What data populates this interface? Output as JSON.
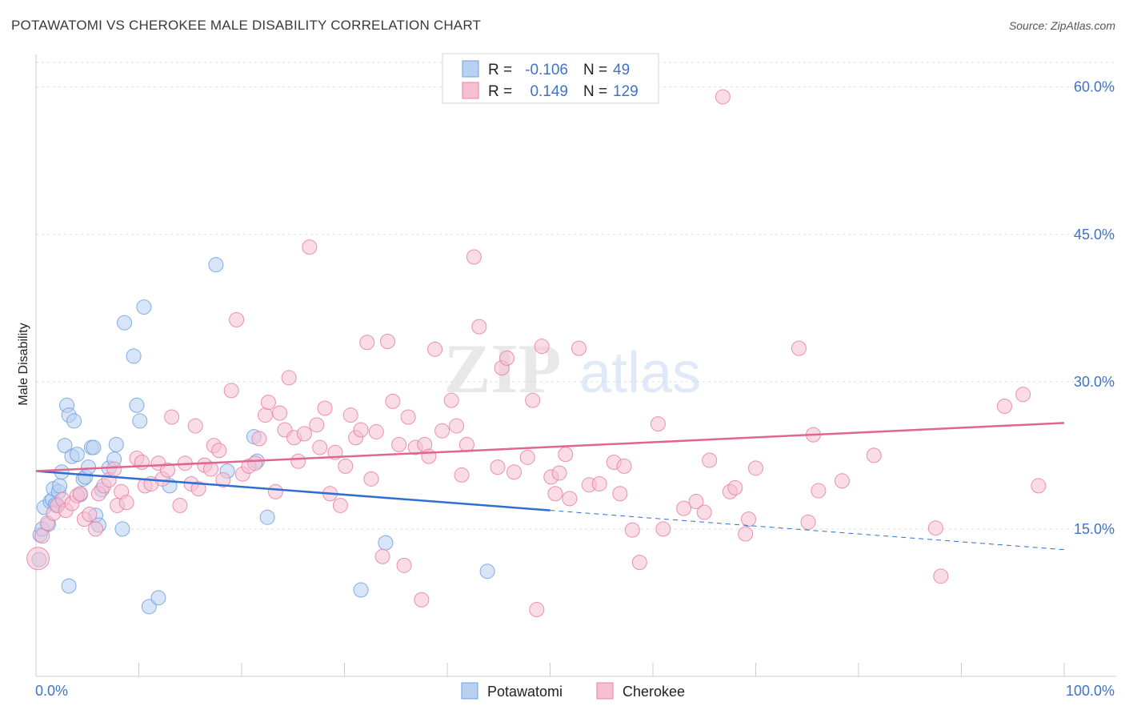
{
  "title": "POTAWATOMI VS CHEROKEE MALE DISABILITY CORRELATION CHART",
  "source": "Source: ZipAtlas.com",
  "watermark": {
    "part1": "ZIP",
    "part2": "atlas"
  },
  "chart_data": {
    "type": "scatter",
    "ylabel": "Male Disability",
    "xlim": [
      0,
      100
    ],
    "ylim": [
      0,
      62.5
    ],
    "x_ticks": [
      "0.0%",
      "100.0%"
    ],
    "y_ticks": [
      {
        "value": 15,
        "label": "15.0%"
      },
      {
        "value": 30,
        "label": "30.0%"
      },
      {
        "value": 45,
        "label": "45.0%"
      },
      {
        "value": 60,
        "label": "60.0%"
      }
    ],
    "grid": true,
    "legend_position": "top-center",
    "legend": [
      {
        "r_label": "R =",
        "r": "-0.106",
        "n_label": "N =",
        "n": "49",
        "color": "#6fa0e0",
        "fill": "#b8d0f2"
      },
      {
        "r_label": "R =",
        "r": "0.149",
        "n_label": "N =",
        "n": "129",
        "color": "#e87fa3",
        "fill": "#f6c0d2"
      }
    ],
    "series": [
      {
        "name": "Potawatomi",
        "color": "#6fa0e0",
        "fill": "#b8d0f2",
        "trend": {
          "x0": 0,
          "y0": 20.9,
          "x1": 50,
          "y1": 16.9,
          "dash_to_x": 100,
          "dash_to_y": 12.9,
          "color": "#2f6fd0"
        },
        "points": [
          [
            0.4,
            14.4
          ],
          [
            0.6,
            15.0
          ],
          [
            0.3,
            11.9
          ],
          [
            0.8,
            17.2
          ],
          [
            1.2,
            15.5
          ],
          [
            1.4,
            17.8
          ],
          [
            1.6,
            18.0
          ],
          [
            1.7,
            19.1
          ],
          [
            2.0,
            17.4
          ],
          [
            2.2,
            18.8
          ],
          [
            2.3,
            19.4
          ],
          [
            2.5,
            20.8
          ],
          [
            2.8,
            23.5
          ],
          [
            3.0,
            27.6
          ],
          [
            3.2,
            26.6
          ],
          [
            3.5,
            22.4
          ],
          [
            3.7,
            26.0
          ],
          [
            4.0,
            22.6
          ],
          [
            4.3,
            18.5
          ],
          [
            4.6,
            20.1
          ],
          [
            4.8,
            20.3
          ],
          [
            5.1,
            21.3
          ],
          [
            5.4,
            23.3
          ],
          [
            5.6,
            23.3
          ],
          [
            5.8,
            16.4
          ],
          [
            6.1,
            15.4
          ],
          [
            6.4,
            19.0
          ],
          [
            7.1,
            21.2
          ],
          [
            7.6,
            22.1
          ],
          [
            7.8,
            23.6
          ],
          [
            8.4,
            15.0
          ],
          [
            8.6,
            36.0
          ],
          [
            9.5,
            32.6
          ],
          [
            9.8,
            27.6
          ],
          [
            10.1,
            26.0
          ],
          [
            10.5,
            37.6
          ],
          [
            11.0,
            7.1
          ],
          [
            11.9,
            8.0
          ],
          [
            13.0,
            19.4
          ],
          [
            17.5,
            41.9
          ],
          [
            18.6,
            20.9
          ],
          [
            21.2,
            24.4
          ],
          [
            21.5,
            21.9
          ],
          [
            22.5,
            16.2
          ],
          [
            3.2,
            9.2
          ],
          [
            31.6,
            8.8
          ],
          [
            34.0,
            13.6
          ],
          [
            43.9,
            10.7
          ],
          [
            1.9,
            17.5
          ]
        ]
      },
      {
        "name": "Cherokee",
        "color": "#e87fa3",
        "fill": "#f6c0d2",
        "trend": {
          "x0": 0,
          "y0": 20.9,
          "x1": 100,
          "y1": 25.8,
          "color": "#e06690"
        },
        "points": [
          [
            0.2,
            12.0
          ],
          [
            0.6,
            14.3
          ],
          [
            1.1,
            15.6
          ],
          [
            1.7,
            16.6
          ],
          [
            2.1,
            17.4
          ],
          [
            2.6,
            18.0
          ],
          [
            2.9,
            16.9
          ],
          [
            3.5,
            17.6
          ],
          [
            4.0,
            18.4
          ],
          [
            4.3,
            18.6
          ],
          [
            4.7,
            16.0
          ],
          [
            5.2,
            16.5
          ],
          [
            5.8,
            15.0
          ],
          [
            6.1,
            18.6
          ],
          [
            6.6,
            19.4
          ],
          [
            7.1,
            20.0
          ],
          [
            7.6,
            21.1
          ],
          [
            7.9,
            17.4
          ],
          [
            8.3,
            18.8
          ],
          [
            8.8,
            17.7
          ],
          [
            9.8,
            22.2
          ],
          [
            10.3,
            21.8
          ],
          [
            10.6,
            19.4
          ],
          [
            11.2,
            19.6
          ],
          [
            11.9,
            21.7
          ],
          [
            12.3,
            20.1
          ],
          [
            12.8,
            21.0
          ],
          [
            13.2,
            26.4
          ],
          [
            14.0,
            17.4
          ],
          [
            14.5,
            21.7
          ],
          [
            15.1,
            19.6
          ],
          [
            15.5,
            25.5
          ],
          [
            15.8,
            19.1
          ],
          [
            16.4,
            21.5
          ],
          [
            17.0,
            21.1
          ],
          [
            17.3,
            23.5
          ],
          [
            17.8,
            23.0
          ],
          [
            18.2,
            20.0
          ],
          [
            19.0,
            29.1
          ],
          [
            19.5,
            36.3
          ],
          [
            20.1,
            20.6
          ],
          [
            20.7,
            21.4
          ],
          [
            21.3,
            21.7
          ],
          [
            21.7,
            24.2
          ],
          [
            22.3,
            26.6
          ],
          [
            22.6,
            27.9
          ],
          [
            23.3,
            18.8
          ],
          [
            23.7,
            26.8
          ],
          [
            24.2,
            25.1
          ],
          [
            24.6,
            30.4
          ],
          [
            25.1,
            24.3
          ],
          [
            25.5,
            21.9
          ],
          [
            26.1,
            24.7
          ],
          [
            26.6,
            43.7
          ],
          [
            27.3,
            25.6
          ],
          [
            27.6,
            23.3
          ],
          [
            28.1,
            27.3
          ],
          [
            28.6,
            18.6
          ],
          [
            29.1,
            22.8
          ],
          [
            29.6,
            17.4
          ],
          [
            30.1,
            21.4
          ],
          [
            30.6,
            26.6
          ],
          [
            31.1,
            24.3
          ],
          [
            31.6,
            25.1
          ],
          [
            32.2,
            34.0
          ],
          [
            32.6,
            20.1
          ],
          [
            33.1,
            24.9
          ],
          [
            33.7,
            12.2
          ],
          [
            34.2,
            34.1
          ],
          [
            34.7,
            28.0
          ],
          [
            35.3,
            23.6
          ],
          [
            35.8,
            11.3
          ],
          [
            36.2,
            26.4
          ],
          [
            36.9,
            23.3
          ],
          [
            37.5,
            7.8
          ],
          [
            37.8,
            23.6
          ],
          [
            38.2,
            22.4
          ],
          [
            38.8,
            33.3
          ],
          [
            39.5,
            25.0
          ],
          [
            40.4,
            28.1
          ],
          [
            40.9,
            25.5
          ],
          [
            41.4,
            20.5
          ],
          [
            41.9,
            23.6
          ],
          [
            42.6,
            42.7
          ],
          [
            43.1,
            35.6
          ],
          [
            44.9,
            21.3
          ],
          [
            45.3,
            31.4
          ],
          [
            45.8,
            32.4
          ],
          [
            46.5,
            20.8
          ],
          [
            47.8,
            22.3
          ],
          [
            48.3,
            28.1
          ],
          [
            48.7,
            6.8
          ],
          [
            49.2,
            33.6
          ],
          [
            50.1,
            20.3
          ],
          [
            50.5,
            18.6
          ],
          [
            50.9,
            20.7
          ],
          [
            51.5,
            22.6
          ],
          [
            51.9,
            18.1
          ],
          [
            52.8,
            33.4
          ],
          [
            53.8,
            19.5
          ],
          [
            54.8,
            19.6
          ],
          [
            56.2,
            21.8
          ],
          [
            56.8,
            18.6
          ],
          [
            57.2,
            21.4
          ],
          [
            58.0,
            14.9
          ],
          [
            58.7,
            11.6
          ],
          [
            60.5,
            25.7
          ],
          [
            63.0,
            17.1
          ],
          [
            64.2,
            17.8
          ],
          [
            65.0,
            16.7
          ],
          [
            65.5,
            22.0
          ],
          [
            66.8,
            59.0
          ],
          [
            67.5,
            18.8
          ],
          [
            68.0,
            19.2
          ],
          [
            69.0,
            14.5
          ],
          [
            69.3,
            16.0
          ],
          [
            70.0,
            21.2
          ],
          [
            74.2,
            33.4
          ],
          [
            75.1,
            15.7
          ],
          [
            75.6,
            24.6
          ],
          [
            76.1,
            18.9
          ],
          [
            78.4,
            19.9
          ],
          [
            81.5,
            22.5
          ],
          [
            87.5,
            15.1
          ],
          [
            94.2,
            27.5
          ],
          [
            96.0,
            28.7
          ],
          [
            97.5,
            19.4
          ],
          [
            88.0,
            10.2
          ],
          [
            61.0,
            15.0
          ]
        ]
      }
    ]
  }
}
